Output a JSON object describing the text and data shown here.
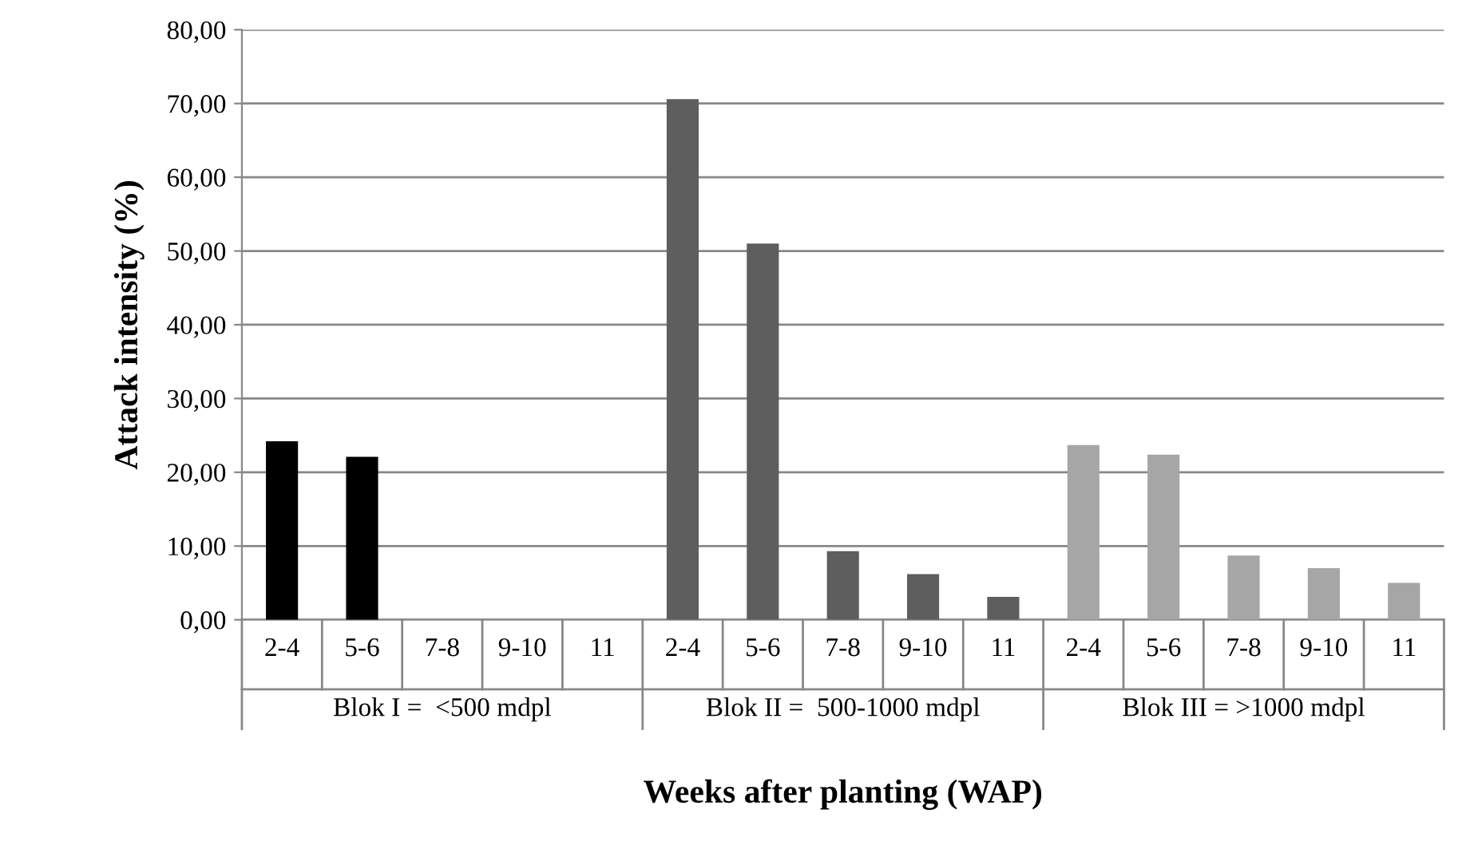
{
  "chart_data": {
    "type": "bar",
    "xlabel": "Weeks after planting (WAP)",
    "ylabel": "Attack intensity (%)",
    "categories": [
      "2-4",
      "5-6",
      "7-8",
      "9-10",
      "11",
      "2-4",
      "5-6",
      "7-8",
      "9-10",
      "11",
      "2-4",
      "5-6",
      "7-8",
      "9-10",
      "11"
    ],
    "series": [
      {
        "color": "#000000",
        "values": [
          24.2,
          22.1,
          0,
          0,
          0,
          null,
          null,
          null,
          null,
          null,
          null,
          null,
          null,
          null,
          null
        ]
      },
      {
        "color": "#5e5e5e",
        "values": [
          null,
          null,
          null,
          null,
          null,
          70.6,
          51.0,
          9.3,
          6.2,
          3.1,
          null,
          null,
          null,
          null,
          null
        ]
      },
      {
        "color": "#a6a6a6",
        "values": [
          null,
          null,
          null,
          null,
          null,
          null,
          null,
          null,
          null,
          null,
          23.7,
          22.4,
          8.7,
          7.0,
          5.0
        ]
      }
    ],
    "annotations": [
      "Blok I =  <500 mdpl",
      "Blok II =  500-1000 mdpl",
      "Blok III = >1000 mdpl"
    ],
    "ylim": [
      0,
      80
    ],
    "yticks": [
      {
        "value": 0,
        "label": "0,00"
      },
      {
        "value": 10,
        "label": "10,00"
      },
      {
        "value": 20,
        "label": "20,00"
      },
      {
        "value": 30,
        "label": "30,00"
      },
      {
        "value": 40,
        "label": "40,00"
      },
      {
        "value": 50,
        "label": "50,00"
      },
      {
        "value": 60,
        "label": "60,00"
      },
      {
        "value": 70,
        "label": "70,00"
      },
      {
        "value": 80,
        "label": "80,00"
      }
    ],
    "grid": "y"
  }
}
